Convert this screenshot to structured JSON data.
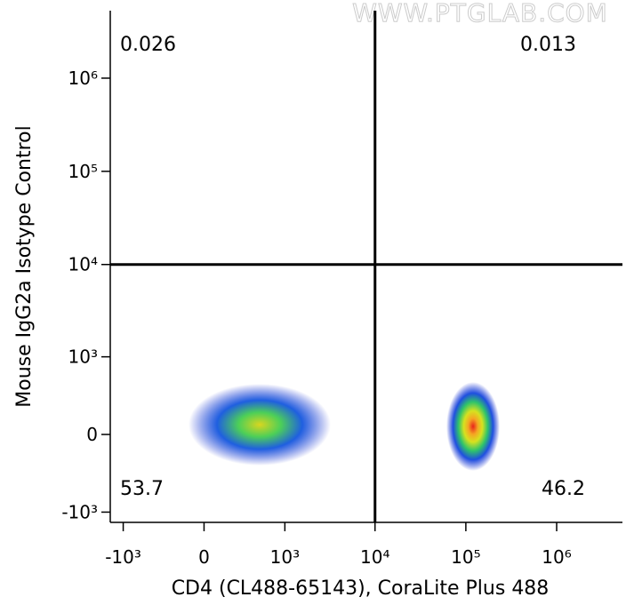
{
  "chart_data": {
    "type": "flow-quadrant",
    "watermark": "WWW.PTGLAB.COM",
    "x_label": "CD4 (CL488-65143), CoraLite Plus 488",
    "y_label": "Mouse IgG2a Isotype Control",
    "scale": "biexponential",
    "xlim": [
      -1400,
      5300000
    ],
    "ylim": [
      -1300,
      5300000
    ],
    "xticks": [
      {
        "value": -1000,
        "label": "-10³"
      },
      0,
      {
        "value": 1000,
        "label": "10³"
      },
      {
        "value": 10000,
        "label": "10⁴"
      },
      {
        "value": 100000,
        "label": "10⁵"
      },
      {
        "value": 1000000,
        "label": "10⁶"
      }
    ],
    "yticks": [
      {
        "value": -1000,
        "label": "-10³"
      },
      0,
      {
        "value": 1000,
        "label": "10³"
      },
      {
        "value": 10000,
        "label": "10⁴"
      },
      {
        "value": 100000,
        "label": "10⁵"
      },
      {
        "value": 1000000,
        "label": "10⁶"
      }
    ],
    "gate": {
      "x": 10000,
      "y": 10000
    },
    "quadrants": {
      "upper_left": 0.026,
      "upper_right": 0.013,
      "lower_left": 53.7,
      "lower_right": 46.2
    }
  }
}
